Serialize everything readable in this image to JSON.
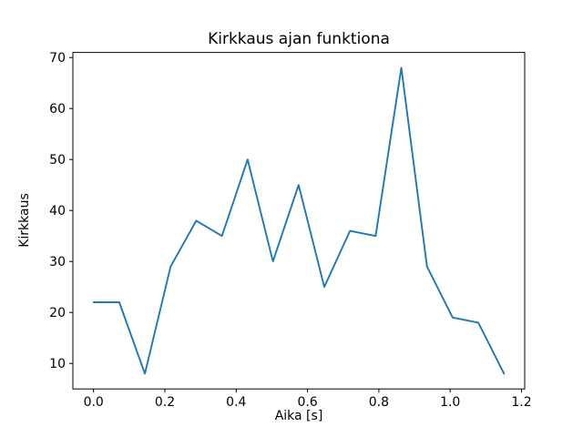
{
  "chart_data": {
    "type": "line",
    "title": "Kirkkaus ajan funktiona",
    "xlabel": "Aika [s]",
    "ylabel": "Kirkkaus",
    "x": [
      0.0,
      0.072,
      0.144,
      0.216,
      0.288,
      0.36,
      0.432,
      0.503,
      0.575,
      0.647,
      0.719,
      0.791,
      0.863,
      0.935,
      1.007,
      1.079,
      1.151
    ],
    "y": [
      22,
      22,
      8,
      29,
      38,
      35,
      50,
      30,
      45,
      25,
      36,
      35,
      68,
      29,
      19,
      18,
      8
    ],
    "xlim": [
      -0.058,
      1.209
    ],
    "ylim": [
      5,
      71
    ],
    "xticks": [
      0.0,
      0.2,
      0.4,
      0.6,
      0.8,
      1.0,
      1.2
    ],
    "xtick_labels": [
      "0.0",
      "0.2",
      "0.4",
      "0.6",
      "0.8",
      "1.0",
      "1.2"
    ],
    "yticks": [
      10,
      20,
      30,
      40,
      50,
      60,
      70
    ],
    "ytick_labels": [
      "10",
      "20",
      "30",
      "40",
      "50",
      "60",
      "70"
    ],
    "line_color": "#1f77b4",
    "axes_color": "#000000",
    "grid": false,
    "legend_position": null
  }
}
